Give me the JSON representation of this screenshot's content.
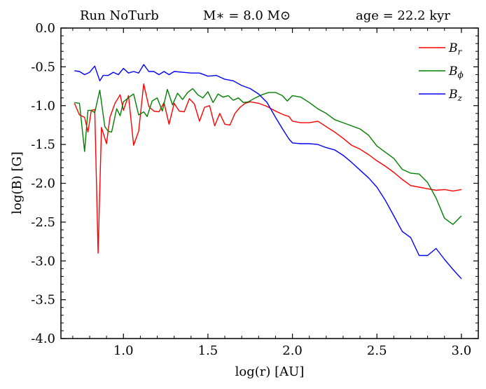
{
  "chart_data": {
    "type": "line",
    "title_parts": [
      "Run NoTurb",
      "M∗ = 8.0 M⊙",
      "age = 22.2 kyr"
    ],
    "xlabel": "log(r) [AU]",
    "ylabel": "log(B) [G]",
    "xlim": [
      0.63,
      3.1
    ],
    "ylim": [
      -4.0,
      0.0
    ],
    "xticks": [
      1.0,
      1.5,
      2.0,
      2.5,
      3.0
    ],
    "xtick_labels": [
      "1.0",
      "1.5",
      "2.0",
      "2.5",
      "3.0"
    ],
    "yticks": [
      0.0,
      -0.5,
      -1.0,
      -1.5,
      -2.0,
      -2.5,
      -3.0,
      -3.5,
      -4.0
    ],
    "ytick_labels": [
      "0.0",
      "-0.5",
      "-1.0",
      "-1.5",
      "-2.0",
      "-2.5",
      "-3.0",
      "-3.5",
      "-4.0"
    ],
    "legend_position": "top-right",
    "series": [
      {
        "name": "B_r",
        "label": "Br",
        "color": "#ff0000",
        "points": [
          [
            0.71,
            -0.97
          ],
          [
            0.74,
            -1.12
          ],
          [
            0.77,
            -1.15
          ],
          [
            0.79,
            -1.34
          ],
          [
            0.81,
            -1.06
          ],
          [
            0.83,
            -1.05
          ],
          [
            0.85,
            -2.9
          ],
          [
            0.87,
            -1.28
          ],
          [
            0.9,
            -1.49
          ],
          [
            0.92,
            -1.15
          ],
          [
            0.95,
            -0.97
          ],
          [
            0.98,
            -0.86
          ],
          [
            1.0,
            -1.06
          ],
          [
            1.03,
            -0.87
          ],
          [
            1.06,
            -1.51
          ],
          [
            1.09,
            -1.33
          ],
          [
            1.12,
            -0.72
          ],
          [
            1.15,
            -1.01
          ],
          [
            1.18,
            -1.07
          ],
          [
            1.21,
            -1.08
          ],
          [
            1.24,
            -0.96
          ],
          [
            1.27,
            -1.24
          ],
          [
            1.3,
            -0.97
          ],
          [
            1.33,
            -1.07
          ],
          [
            1.36,
            -1.08
          ],
          [
            1.39,
            -0.91
          ],
          [
            1.42,
            -0.98
          ],
          [
            1.45,
            -1.2
          ],
          [
            1.48,
            -1.02
          ],
          [
            1.51,
            -1.0
          ],
          [
            1.54,
            -1.26
          ],
          [
            1.57,
            -1.1
          ],
          [
            1.6,
            -1.24
          ],
          [
            1.63,
            -1.25
          ],
          [
            1.66,
            -1.1
          ],
          [
            1.69,
            -1.02
          ],
          [
            1.72,
            -0.97
          ],
          [
            1.75,
            -0.95
          ],
          [
            1.8,
            -0.97
          ],
          [
            1.85,
            -1.01
          ],
          [
            1.9,
            -1.07
          ],
          [
            1.95,
            -1.12
          ],
          [
            1.98,
            -1.14
          ],
          [
            2.0,
            -1.2
          ],
          [
            2.05,
            -1.22
          ],
          [
            2.1,
            -1.22
          ],
          [
            2.15,
            -1.2
          ],
          [
            2.2,
            -1.27
          ],
          [
            2.25,
            -1.34
          ],
          [
            2.3,
            -1.42
          ],
          [
            2.35,
            -1.51
          ],
          [
            2.4,
            -1.56
          ],
          [
            2.45,
            -1.63
          ],
          [
            2.5,
            -1.71
          ],
          [
            2.55,
            -1.78
          ],
          [
            2.6,
            -1.86
          ],
          [
            2.65,
            -1.95
          ],
          [
            2.7,
            -2.03
          ],
          [
            2.75,
            -2.05
          ],
          [
            2.8,
            -2.07
          ],
          [
            2.85,
            -2.09
          ],
          [
            2.9,
            -2.08
          ],
          [
            2.95,
            -2.1
          ],
          [
            3.0,
            -2.08
          ]
        ]
      },
      {
        "name": "B_phi",
        "label": "Bϕ",
        "color": "#008000",
        "points": [
          [
            0.71,
            -0.96
          ],
          [
            0.74,
            -0.97
          ],
          [
            0.77,
            -1.59
          ],
          [
            0.79,
            -1.06
          ],
          [
            0.81,
            -1.06
          ],
          [
            0.83,
            -1.09
          ],
          [
            0.86,
            -0.8
          ],
          [
            0.89,
            -1.27
          ],
          [
            0.91,
            -1.33
          ],
          [
            0.93,
            -1.34
          ],
          [
            0.96,
            -1.04
          ],
          [
            0.98,
            -1.13
          ],
          [
            1.0,
            -0.95
          ],
          [
            1.04,
            -0.88
          ],
          [
            1.06,
            -0.85
          ],
          [
            1.09,
            -1.12
          ],
          [
            1.12,
            -1.08
          ],
          [
            1.14,
            -1.14
          ],
          [
            1.17,
            -0.94
          ],
          [
            1.2,
            -0.9
          ],
          [
            1.23,
            -1.07
          ],
          [
            1.26,
            -0.79
          ],
          [
            1.29,
            -0.99
          ],
          [
            1.32,
            -0.84
          ],
          [
            1.35,
            -0.92
          ],
          [
            1.38,
            -0.83
          ],
          [
            1.41,
            -0.78
          ],
          [
            1.44,
            -0.86
          ],
          [
            1.47,
            -0.9
          ],
          [
            1.5,
            -0.82
          ],
          [
            1.53,
            -0.96
          ],
          [
            1.56,
            -0.85
          ],
          [
            1.59,
            -0.89
          ],
          [
            1.62,
            -0.87
          ],
          [
            1.65,
            -0.93
          ],
          [
            1.68,
            -0.9
          ],
          [
            1.71,
            -0.96
          ],
          [
            1.74,
            -0.95
          ],
          [
            1.78,
            -0.9
          ],
          [
            1.82,
            -0.86
          ],
          [
            1.86,
            -0.83
          ],
          [
            1.9,
            -0.83
          ],
          [
            1.94,
            -0.87
          ],
          [
            1.97,
            -0.94
          ],
          [
            2.0,
            -0.87
          ],
          [
            2.05,
            -0.89
          ],
          [
            2.1,
            -0.96
          ],
          [
            2.15,
            -1.04
          ],
          [
            2.2,
            -1.1
          ],
          [
            2.25,
            -1.18
          ],
          [
            2.3,
            -1.22
          ],
          [
            2.35,
            -1.26
          ],
          [
            2.4,
            -1.3
          ],
          [
            2.45,
            -1.38
          ],
          [
            2.5,
            -1.52
          ],
          [
            2.55,
            -1.6
          ],
          [
            2.6,
            -1.68
          ],
          [
            2.65,
            -1.82
          ],
          [
            2.7,
            -1.87
          ],
          [
            2.75,
            -1.88
          ],
          [
            2.8,
            -1.99
          ],
          [
            2.85,
            -2.19
          ],
          [
            2.9,
            -2.45
          ],
          [
            2.95,
            -2.53
          ],
          [
            3.0,
            -2.42
          ]
        ]
      },
      {
        "name": "B_z",
        "label": "Bz",
        "color": "#0000ff",
        "points": [
          [
            0.71,
            -0.55
          ],
          [
            0.74,
            -0.56
          ],
          [
            0.77,
            -0.6
          ],
          [
            0.8,
            -0.57
          ],
          [
            0.83,
            -0.49
          ],
          [
            0.86,
            -0.68
          ],
          [
            0.88,
            -0.61
          ],
          [
            0.91,
            -0.61
          ],
          [
            0.94,
            -0.57
          ],
          [
            0.97,
            -0.6
          ],
          [
            1.0,
            -0.52
          ],
          [
            1.03,
            -0.58
          ],
          [
            1.06,
            -0.56
          ],
          [
            1.09,
            -0.58
          ],
          [
            1.12,
            -0.47
          ],
          [
            1.15,
            -0.56
          ],
          [
            1.18,
            -0.56
          ],
          [
            1.21,
            -0.6
          ],
          [
            1.24,
            -0.56
          ],
          [
            1.27,
            -0.6
          ],
          [
            1.3,
            -0.56
          ],
          [
            1.35,
            -0.57
          ],
          [
            1.4,
            -0.58
          ],
          [
            1.45,
            -0.58
          ],
          [
            1.5,
            -0.62
          ],
          [
            1.55,
            -0.61
          ],
          [
            1.6,
            -0.66
          ],
          [
            1.65,
            -0.68
          ],
          [
            1.7,
            -0.74
          ],
          [
            1.75,
            -0.78
          ],
          [
            1.8,
            -0.85
          ],
          [
            1.85,
            -0.96
          ],
          [
            1.9,
            -1.15
          ],
          [
            1.95,
            -1.33
          ],
          [
            1.98,
            -1.43
          ],
          [
            2.0,
            -1.48
          ],
          [
            2.05,
            -1.49
          ],
          [
            2.1,
            -1.49
          ],
          [
            2.15,
            -1.5
          ],
          [
            2.2,
            -1.54
          ],
          [
            2.25,
            -1.57
          ],
          [
            2.3,
            -1.64
          ],
          [
            2.35,
            -1.73
          ],
          [
            2.4,
            -1.83
          ],
          [
            2.45,
            -1.93
          ],
          [
            2.5,
            -2.05
          ],
          [
            2.55,
            -2.22
          ],
          [
            2.6,
            -2.42
          ],
          [
            2.65,
            -2.62
          ],
          [
            2.7,
            -2.7
          ],
          [
            2.75,
            -2.93
          ],
          [
            2.8,
            -2.93
          ],
          [
            2.85,
            -2.84
          ],
          [
            2.9,
            -2.98
          ],
          [
            2.95,
            -3.11
          ],
          [
            3.0,
            -3.23
          ]
        ]
      }
    ]
  }
}
